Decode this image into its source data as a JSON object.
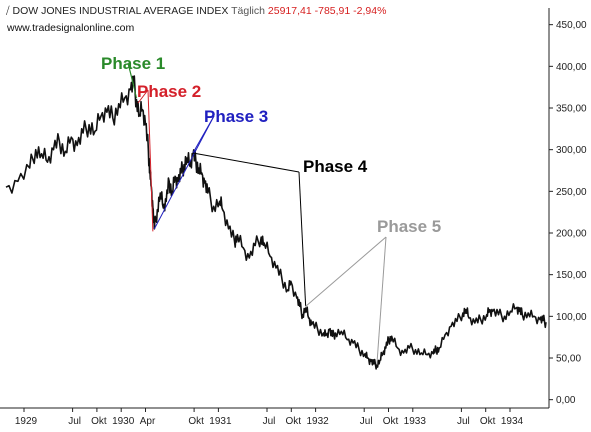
{
  "header": {
    "icon": "chart-symbol-icon",
    "title": "DOW JONES INDUSTRIAL AVERAGE INDEX",
    "interval": "Täglich",
    "last": "25917,41",
    "change": "-785,91",
    "change_pct": "-2,94%",
    "source": "www.tradesignalonline.com"
  },
  "colors": {
    "price_line": "#111111",
    "phase1": "#2a8a2a",
    "phase2": "#d4202a",
    "phase3": "#2020c0",
    "phase4": "#000000",
    "phase5": "#9a9a9a",
    "negative": "#d62020"
  },
  "chart_data": {
    "type": "line",
    "title": "DOW JONES INDUSTRIAL AVERAGE INDEX",
    "xlabel": "",
    "ylabel": "",
    "ylim": [
      -10,
      470
    ],
    "y_ticks": [
      "450,00",
      "400,00",
      "350,00",
      "300,00",
      "250,00",
      "200,00",
      "150,00",
      "100,00",
      "50,00",
      "0,00"
    ],
    "x_ticks": [
      "1929",
      "Jul",
      "Okt",
      "1930",
      "Apr",
      "Okt",
      "1931",
      "Jul",
      "Okt",
      "1932",
      "Jul",
      "Okt",
      "1933",
      "Jul",
      "Okt",
      "1934"
    ],
    "series": [
      {
        "values": [
          [
            0,
            255
          ],
          [
            4,
            262
          ],
          [
            8,
            278
          ],
          [
            10,
            300
          ],
          [
            12,
            295
          ],
          [
            14,
            285
          ],
          [
            16,
            300
          ],
          [
            18,
            310
          ],
          [
            20,
            298
          ],
          [
            22,
            315
          ],
          [
            24,
            305
          ],
          [
            26,
            320
          ],
          [
            28,
            330
          ],
          [
            30,
            322
          ],
          [
            32,
            340
          ],
          [
            34,
            345
          ],
          [
            36,
            338
          ],
          [
            38,
            355
          ],
          [
            40,
            362
          ],
          [
            42,
            372
          ],
          [
            43,
            380
          ],
          [
            44,
            360
          ],
          [
            45,
            342
          ],
          [
            46,
            348
          ],
          [
            47,
            330
          ],
          [
            48,
            298
          ],
          [
            48.5,
            275
          ],
          [
            49,
            255
          ],
          [
            49.5,
            230
          ],
          [
            50,
            205
          ],
          [
            51,
            228
          ],
          [
            52,
            248
          ],
          [
            53,
            230
          ],
          [
            54,
            238
          ],
          [
            55,
            262
          ],
          [
            56,
            250
          ],
          [
            57,
            268
          ],
          [
            58,
            262
          ],
          [
            59,
            272
          ],
          [
            60,
            282
          ],
          [
            61,
            290
          ],
          [
            62,
            280
          ],
          [
            63,
            293
          ],
          [
            64,
            286
          ],
          [
            65,
            278
          ],
          [
            66,
            272
          ],
          [
            67,
            260
          ],
          [
            68,
            248
          ],
          [
            70,
            232
          ],
          [
            72,
            238
          ],
          [
            73,
            228
          ],
          [
            75,
            205
          ],
          [
            77,
            190
          ],
          [
            78,
            198
          ],
          [
            80,
            182
          ],
          [
            82,
            170
          ],
          [
            84,
            185
          ],
          [
            86,
            195
          ],
          [
            87,
            188
          ],
          [
            89,
            172
          ],
          [
            91,
            158
          ],
          [
            93,
            145
          ],
          [
            95,
            132
          ],
          [
            96,
            142
          ],
          [
            98,
            122
          ],
          [
            99,
            112
          ],
          [
            100,
            102
          ],
          [
            101,
            110
          ],
          [
            102,
            98
          ],
          [
            103,
            90
          ],
          [
            105,
            85
          ],
          [
            107,
            80
          ],
          [
            108,
            78
          ],
          [
            109,
            84
          ],
          [
            110,
            76
          ],
          [
            111,
            80
          ],
          [
            113,
            82
          ],
          [
            115,
            72
          ],
          [
            117,
            68
          ],
          [
            119,
            60
          ],
          [
            121,
            55
          ],
          [
            122,
            50
          ],
          [
            123,
            46
          ],
          [
            124,
            43
          ],
          [
            125,
            42
          ],
          [
            126,
            47
          ],
          [
            127,
            55
          ],
          [
            128,
            62
          ],
          [
            129,
            72
          ],
          [
            130,
            76
          ],
          [
            132,
            62
          ],
          [
            134,
            56
          ],
          [
            136,
            62
          ],
          [
            138,
            60
          ],
          [
            140,
            56
          ],
          [
            142,
            54
          ],
          [
            144,
            55
          ],
          [
            145,
            60
          ],
          [
            146,
            62
          ],
          [
            148,
            78
          ],
          [
            150,
            88
          ],
          [
            152,
            94
          ],
          [
            154,
            104
          ],
          [
            155,
            108
          ],
          [
            156,
            98
          ],
          [
            158,
            92
          ],
          [
            160,
            96
          ],
          [
            162,
            102
          ],
          [
            163,
            108
          ],
          [
            164,
            106
          ],
          [
            166,
            102
          ],
          [
            168,
            100
          ],
          [
            170,
            106
          ],
          [
            172,
            110
          ],
          [
            173,
            106
          ],
          [
            174,
            102
          ],
          [
            176,
            104
          ],
          [
            178,
            100
          ],
          [
            180,
            96
          ],
          [
            181,
            95
          ],
          [
            182,
            93
          ]
        ]
      }
    ],
    "annotations": [
      {
        "label": "Phase 1",
        "color": "#2a8a2a",
        "targets": [
          [
            43,
            378
          ],
          [
            44,
            362
          ]
        ]
      },
      {
        "label": "Phase 2",
        "color": "#d4202a",
        "targets": [
          [
            44.5,
            356
          ],
          [
            49.5,
            202
          ]
        ]
      },
      {
        "label": "Phase 3",
        "color": "#2020c0",
        "targets": [
          [
            50,
            205
          ],
          [
            63,
            296
          ]
        ]
      },
      {
        "label": "Phase 4",
        "color": "#000000",
        "targets": [
          [
            63,
            296
          ],
          [
            101,
            112
          ]
        ]
      },
      {
        "label": "Phase 5",
        "color": "#9a9a9a",
        "targets": [
          [
            101,
            112
          ],
          [
            125,
            42
          ]
        ]
      }
    ],
    "grid": false,
    "legend": "none"
  }
}
